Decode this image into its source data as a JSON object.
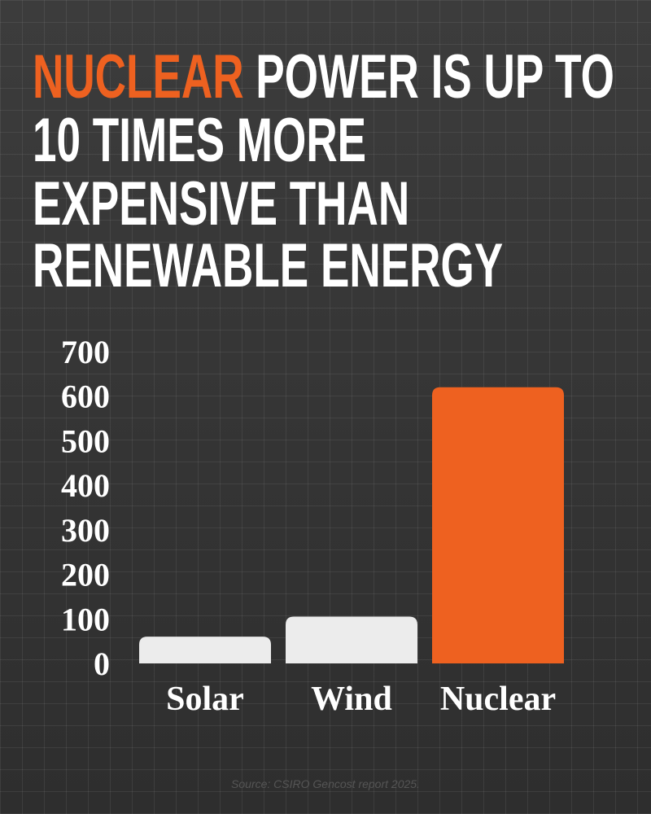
{
  "chart_data": {
    "type": "bar",
    "title_highlight": "NUCLEAR",
    "title_lines": [
      "POWER IS UP TO",
      "10 TIMES MORE",
      "EXPENSIVE THAN",
      "RENEWABLE ENERGY"
    ],
    "categories": [
      "Solar",
      "Wind",
      "Nuclear"
    ],
    "values": [
      60,
      105,
      620
    ],
    "colors": [
      "#ececec",
      "#ececec",
      "#ee6120"
    ],
    "ylim": [
      0,
      700
    ],
    "yticks": [
      0,
      100,
      200,
      300,
      400,
      500,
      600,
      700
    ],
    "grid": false,
    "source": "Source: CSIRO Gencost report 2025."
  }
}
